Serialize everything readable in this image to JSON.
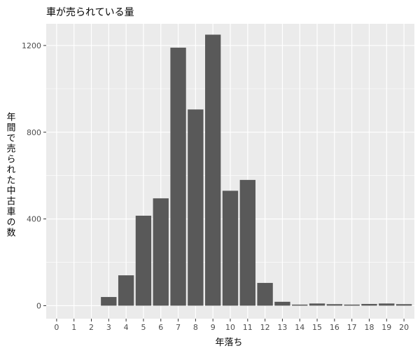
{
  "chart_data": {
    "type": "bar",
    "title": "車が売られている量",
    "xlabel": "年落ち",
    "ylabel": "年間で売られた中古車の数",
    "categories": [
      "0",
      "1",
      "2",
      "3",
      "4",
      "5",
      "6",
      "7",
      "8",
      "9",
      "10",
      "11",
      "12",
      "13",
      "14",
      "15",
      "16",
      "17",
      "18",
      "19",
      "20"
    ],
    "values": [
      0,
      0,
      0,
      40,
      140,
      415,
      495,
      1190,
      905,
      1250,
      530,
      580,
      105,
      18,
      5,
      10,
      7,
      5,
      8,
      10,
      7
    ],
    "ylim": [
      -60,
      1300
    ],
    "yticks": [
      0,
      400,
      800,
      1200
    ],
    "grid": true,
    "bar_color": "#595959",
    "panel_color": "#ebebeb",
    "grid_color": "#ffffff"
  }
}
